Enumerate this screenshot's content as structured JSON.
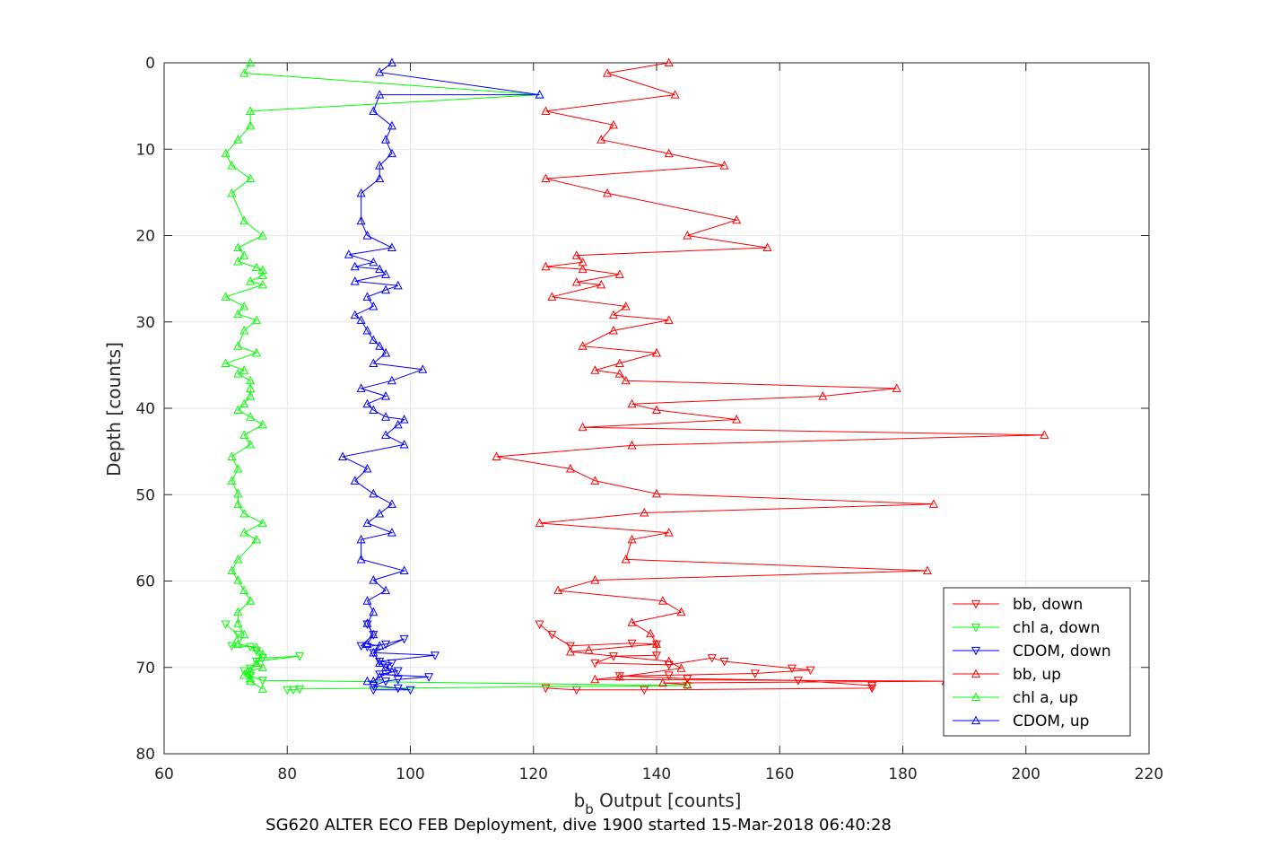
{
  "chart_data": {
    "type": "line",
    "title": "",
    "xlabel_main": "b",
    "xlabel_sub": "b",
    "xlabel_rest": " Output [counts]",
    "ylabel": "Depth [counts]",
    "caption": "SG620 ALTER ECO FEB Deployment, dive 1900 started 15-Mar-2018 06:40:28",
    "xlim": [
      60,
      220
    ],
    "ylim": [
      0,
      80
    ],
    "y_reversed": true,
    "grid": true,
    "legend_placement": "bottom-right",
    "xticks": [
      "60",
      "80",
      "100",
      "120",
      "140",
      "160",
      "180",
      "200",
      "220"
    ],
    "yticks": [
      "0",
      "10",
      "20",
      "30",
      "40",
      "50",
      "60",
      "70",
      "80"
    ],
    "series": [
      {
        "name": "bb, down",
        "color": "#ff0000",
        "marker": "triangle-down",
        "points": [
          [
            121,
            65
          ],
          [
            123,
            66.2
          ],
          [
            126,
            67.5
          ],
          [
            136,
            67.2
          ],
          [
            140,
            67.3
          ],
          [
            140,
            68.6
          ],
          [
            133,
            68.7
          ],
          [
            130,
            69.5
          ],
          [
            142,
            69.7
          ],
          [
            149,
            68.9
          ],
          [
            151,
            69.3
          ],
          [
            162,
            70.1
          ],
          [
            165,
            70.3
          ],
          [
            156,
            70.7
          ],
          [
            142,
            70.9
          ],
          [
            134,
            71
          ],
          [
            145,
            71.3
          ],
          [
            163,
            71.5
          ],
          [
            175,
            72.1
          ],
          [
            175,
            72.4
          ],
          [
            138,
            72.6
          ],
          [
            127,
            72.6
          ],
          [
            122,
            72.4
          ]
        ]
      },
      {
        "name": "chl a, down",
        "color": "#00ff00",
        "marker": "triangle-down",
        "points": [
          [
            70,
            65
          ],
          [
            72,
            66.2
          ],
          [
            71,
            67.5
          ],
          [
            74,
            67.6
          ],
          [
            75,
            68.1
          ],
          [
            76,
            68.9
          ],
          [
            82,
            68.7
          ],
          [
            75,
            69.3
          ],
          [
            74,
            70.1
          ],
          [
            73,
            70.4
          ],
          [
            74,
            71
          ],
          [
            76,
            71.5
          ],
          [
            145,
            72.1
          ],
          [
            82,
            72.5
          ],
          [
            81,
            72.6
          ],
          [
            80,
            72.6
          ]
        ]
      },
      {
        "name": "CDOM, down",
        "color": "#0000ff",
        "marker": "triangle-down",
        "points": [
          [
            93,
            65
          ],
          [
            94,
            66.2
          ],
          [
            92,
            67.5
          ],
          [
            93,
            67.6
          ],
          [
            96,
            67.3
          ],
          [
            99,
            66.7
          ],
          [
            94,
            68.3
          ],
          [
            104,
            68.6
          ],
          [
            95,
            69.3
          ],
          [
            97,
            69.5
          ],
          [
            96,
            70
          ],
          [
            98,
            70.4
          ],
          [
            95,
            70.8
          ],
          [
            103,
            71.1
          ],
          [
            98,
            71.4
          ],
          [
            96,
            71.6
          ],
          [
            94,
            72.1
          ],
          [
            98,
            72.4
          ],
          [
            100,
            72.6
          ],
          [
            94,
            72.6
          ]
        ]
      },
      {
        "name": "bb, up",
        "color": "#ff0000",
        "marker": "triangle-up",
        "points": [
          [
            142,
            0
          ],
          [
            132,
            1.2
          ],
          [
            143,
            3.7
          ],
          [
            122,
            5.6
          ],
          [
            133,
            7.2
          ],
          [
            131,
            8.9
          ],
          [
            142,
            10.5
          ],
          [
            151,
            11.9
          ],
          [
            122,
            13.4
          ],
          [
            132,
            15.1
          ],
          [
            153,
            18.2
          ],
          [
            145,
            20
          ],
          [
            158,
            21.4
          ],
          [
            127,
            22.3
          ],
          [
            128,
            23.1
          ],
          [
            122,
            23.6
          ],
          [
            128,
            23.9
          ],
          [
            134,
            24.5
          ],
          [
            127,
            25.4
          ],
          [
            131,
            25.7
          ],
          [
            123,
            27.1
          ],
          [
            135,
            28.2
          ],
          [
            133,
            29.2
          ],
          [
            142,
            29.8
          ],
          [
            133,
            31
          ],
          [
            128,
            32.8
          ],
          [
            140,
            33.6
          ],
          [
            134,
            34.8
          ],
          [
            130,
            35.6
          ],
          [
            134,
            36
          ],
          [
            135,
            36.8
          ],
          [
            179,
            37.7
          ],
          [
            167,
            38.6
          ],
          [
            136,
            39.5
          ],
          [
            140,
            40.2
          ],
          [
            153,
            41.3
          ],
          [
            128,
            42.2
          ],
          [
            203,
            43.1
          ],
          [
            136,
            44.3
          ],
          [
            114,
            45.6
          ],
          [
            126,
            47
          ],
          [
            130,
            48.4
          ],
          [
            140,
            49.9
          ],
          [
            185,
            51.1
          ],
          [
            138,
            52.1
          ],
          [
            121,
            53.3
          ],
          [
            142,
            54.4
          ],
          [
            136,
            55.2
          ],
          [
            135,
            57.5
          ],
          [
            184,
            58.8
          ],
          [
            130,
            59.9
          ],
          [
            124,
            61.1
          ],
          [
            141,
            62.3
          ],
          [
            144,
            63.6
          ],
          [
            136,
            64.8
          ],
          [
            139,
            66.1
          ],
          [
            140,
            67.3
          ],
          [
            129,
            68
          ],
          [
            126,
            68.2
          ],
          [
            142,
            69.3
          ],
          [
            144,
            70.1
          ],
          [
            134,
            71.1
          ],
          [
            130,
            71.4
          ],
          [
            187,
            71.6
          ],
          [
            141,
            71.8
          ],
          [
            145,
            72
          ]
        ]
      },
      {
        "name": "chl a, up",
        "color": "#00ff00",
        "marker": "triangle-up",
        "points": [
          [
            74,
            0
          ],
          [
            73,
            1.2
          ],
          [
            121,
            3.7
          ],
          [
            74,
            5.6
          ],
          [
            74,
            7.3
          ],
          [
            72,
            8.9
          ],
          [
            70,
            10.5
          ],
          [
            71,
            11.9
          ],
          [
            74,
            13.4
          ],
          [
            71,
            15.1
          ],
          [
            73,
            18.3
          ],
          [
            76,
            20
          ],
          [
            72,
            21.4
          ],
          [
            73,
            22.3
          ],
          [
            72,
            23
          ],
          [
            75,
            23.7
          ],
          [
            76,
            24
          ],
          [
            76,
            24.6
          ],
          [
            74,
            25.3
          ],
          [
            76,
            25.7
          ],
          [
            70,
            27.1
          ],
          [
            73,
            28.2
          ],
          [
            72,
            29.1
          ],
          [
            75,
            29.8
          ],
          [
            73,
            31
          ],
          [
            72,
            32.8
          ],
          [
            75,
            33.6
          ],
          [
            70,
            34.8
          ],
          [
            73,
            35.6
          ],
          [
            72,
            36
          ],
          [
            74,
            36.8
          ],
          [
            74,
            37.7
          ],
          [
            74,
            38.6
          ],
          [
            73,
            39.5
          ],
          [
            72,
            40.2
          ],
          [
            74,
            41
          ],
          [
            76,
            41.9
          ],
          [
            73,
            43.1
          ],
          [
            74,
            44.2
          ],
          [
            71,
            45.6
          ],
          [
            72,
            47
          ],
          [
            71,
            48.4
          ],
          [
            72,
            49.9
          ],
          [
            72,
            51.1
          ],
          [
            73,
            52.2
          ],
          [
            76,
            53.3
          ],
          [
            73,
            54.4
          ],
          [
            75,
            55.2
          ],
          [
            72,
            57.5
          ],
          [
            71,
            58.8
          ],
          [
            72,
            59.9
          ],
          [
            73,
            61.1
          ],
          [
            74,
            62.3
          ],
          [
            72,
            63.6
          ],
          [
            72,
            64.9
          ],
          [
            73,
            66.2
          ],
          [
            72,
            67.3
          ],
          [
            75,
            67.7
          ],
          [
            76,
            68.5
          ],
          [
            75,
            69.5
          ],
          [
            76,
            70
          ],
          [
            74,
            70.4
          ],
          [
            73,
            70.9
          ],
          [
            74,
            71.3
          ],
          [
            74,
            71.6
          ],
          [
            76,
            72.5
          ]
        ]
      },
      {
        "name": "CDOM, up",
        "color": "#0000ff",
        "marker": "triangle-up",
        "points": [
          [
            97,
            0
          ],
          [
            95,
            1.1
          ],
          [
            121,
            3.7
          ],
          [
            95,
            3.7
          ],
          [
            94,
            5.6
          ],
          [
            97,
            7.3
          ],
          [
            96,
            8.9
          ],
          [
            97,
            10.5
          ],
          [
            95,
            11.9
          ],
          [
            95,
            13.4
          ],
          [
            92,
            15.1
          ],
          [
            92,
            18.3
          ],
          [
            93,
            20
          ],
          [
            97,
            21.4
          ],
          [
            90,
            22.2
          ],
          [
            94,
            23.1
          ],
          [
            91,
            23.6
          ],
          [
            95,
            23.9
          ],
          [
            96,
            24.5
          ],
          [
            91,
            25.3
          ],
          [
            98,
            25.8
          ],
          [
            96,
            26.3
          ],
          [
            93,
            27.1
          ],
          [
            94,
            28.2
          ],
          [
            91,
            29.2
          ],
          [
            92,
            29.8
          ],
          [
            93,
            31
          ],
          [
            94,
            32.1
          ],
          [
            95,
            32.8
          ],
          [
            96,
            33.6
          ],
          [
            94,
            34.8
          ],
          [
            102,
            35.5
          ],
          [
            97,
            36.8
          ],
          [
            92,
            37.7
          ],
          [
            96,
            38.6
          ],
          [
            93,
            39.5
          ],
          [
            94,
            40.2
          ],
          [
            96,
            41
          ],
          [
            99,
            41.3
          ],
          [
            98,
            41.9
          ],
          [
            96,
            43.1
          ],
          [
            99,
            44.2
          ],
          [
            89,
            45.6
          ],
          [
            93,
            47
          ],
          [
            91,
            48.4
          ],
          [
            94,
            49.9
          ],
          [
            97,
            51.1
          ],
          [
            95,
            52.2
          ],
          [
            93,
            53.3
          ],
          [
            97,
            54.4
          ],
          [
            92,
            55.2
          ],
          [
            92,
            57.5
          ],
          [
            99,
            58.8
          ],
          [
            94,
            59.9
          ],
          [
            96,
            61.1
          ],
          [
            93,
            62.3
          ],
          [
            94,
            63.6
          ],
          [
            93,
            64.9
          ],
          [
            94,
            66.2
          ],
          [
            93,
            67.3
          ],
          [
            95,
            67.5
          ],
          [
            94,
            68.3
          ],
          [
            95,
            69.5
          ],
          [
            96,
            70
          ],
          [
            97,
            70.5
          ],
          [
            95,
            71.1
          ],
          [
            94,
            71.6
          ],
          [
            93,
            71.6
          ]
        ]
      }
    ]
  }
}
